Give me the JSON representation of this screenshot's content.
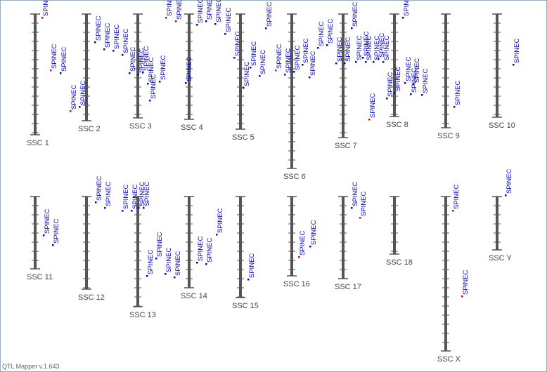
{
  "chromosomes": [
    {
      "name": "SSC 1",
      "markers": [
        "SPINEC",
        "SPINEC",
        "SPINEC",
        "SPINEC",
        "SPINEC"
      ]
    },
    {
      "name": "SSC 2",
      "markers": [
        "SPINEC",
        "SPINEC",
        "SPINEC",
        "SPINEC"
      ]
    },
    {
      "name": "SSC 3",
      "markers": [
        "SPINEC",
        "SPINEC",
        "SPINEC",
        "SPINEC",
        "SPINEC",
        "SPINEC"
      ]
    },
    {
      "name": "SSC 4",
      "markers": [
        "SPINEC",
        "SPINEC",
        "SPINEC",
        "SPINEC",
        "SPINEC",
        "SPINEC",
        "SPINEC",
        "SPINEC"
      ]
    },
    {
      "name": "SSC 5",
      "markers": [
        "SPINEC",
        "SPINEC",
        "SPINEC",
        "SPINEC"
      ]
    },
    {
      "name": "SSC 6",
      "markers": [
        "SPINEC",
        "SPINEC",
        "SPINEC",
        "SPINEC",
        "SPINEC",
        "SPINEC",
        "SPINEC"
      ]
    },
    {
      "name": "SSC 7",
      "markers": [
        "SPINEC",
        "SPINEC",
        "SPINEC",
        "SPINEC",
        "SPINEC",
        "SPINEC",
        "SPINEC",
        "SPINEC",
        "SPINEC",
        "SPINEC"
      ]
    },
    {
      "name": "SSC 8",
      "markers": [
        "SPINEC",
        "SPINEC",
        "SPINEC",
        "SPINEC",
        "SPINEC",
        "SPINEC",
        "SPINEC"
      ]
    },
    {
      "name": "SSC 9",
      "markers": [
        "SPINEC"
      ]
    },
    {
      "name": "SSC 10",
      "markers": [
        "SPINEC"
      ]
    },
    {
      "name": "SSC 11",
      "markers": [
        "SPINEC",
        "SPINEC"
      ]
    },
    {
      "name": "SSC 12",
      "markers": [
        "SPINEC",
        "SPINEC"
      ]
    },
    {
      "name": "SSC 13",
      "markers": [
        "SPINEC",
        "SPINEC",
        "SPINEC",
        "SPINEC",
        "SPINEC",
        "SPINEC",
        "SPINEC",
        "SPINEC"
      ]
    },
    {
      "name": "SSC 14",
      "markers": [
        "SPINEC",
        "SPINEC",
        "SPINEC"
      ]
    },
    {
      "name": "SSC 15",
      "markers": [
        "SPINEC"
      ]
    },
    {
      "name": "SSC 16",
      "markers": [
        "SPINEC",
        "SPINEC"
      ]
    },
    {
      "name": "SSC 17",
      "markers": [
        "SPINEC",
        "SPINEC"
      ]
    },
    {
      "name": "SSC 18",
      "markers": []
    },
    {
      "name": "SSC X",
      "markers": [
        "SPINEC",
        "SPINEC"
      ]
    },
    {
      "name": "SSC Y",
      "markers": [
        "SPINEC"
      ]
    }
  ],
  "footer": "QTL Mapper v.1.643"
}
